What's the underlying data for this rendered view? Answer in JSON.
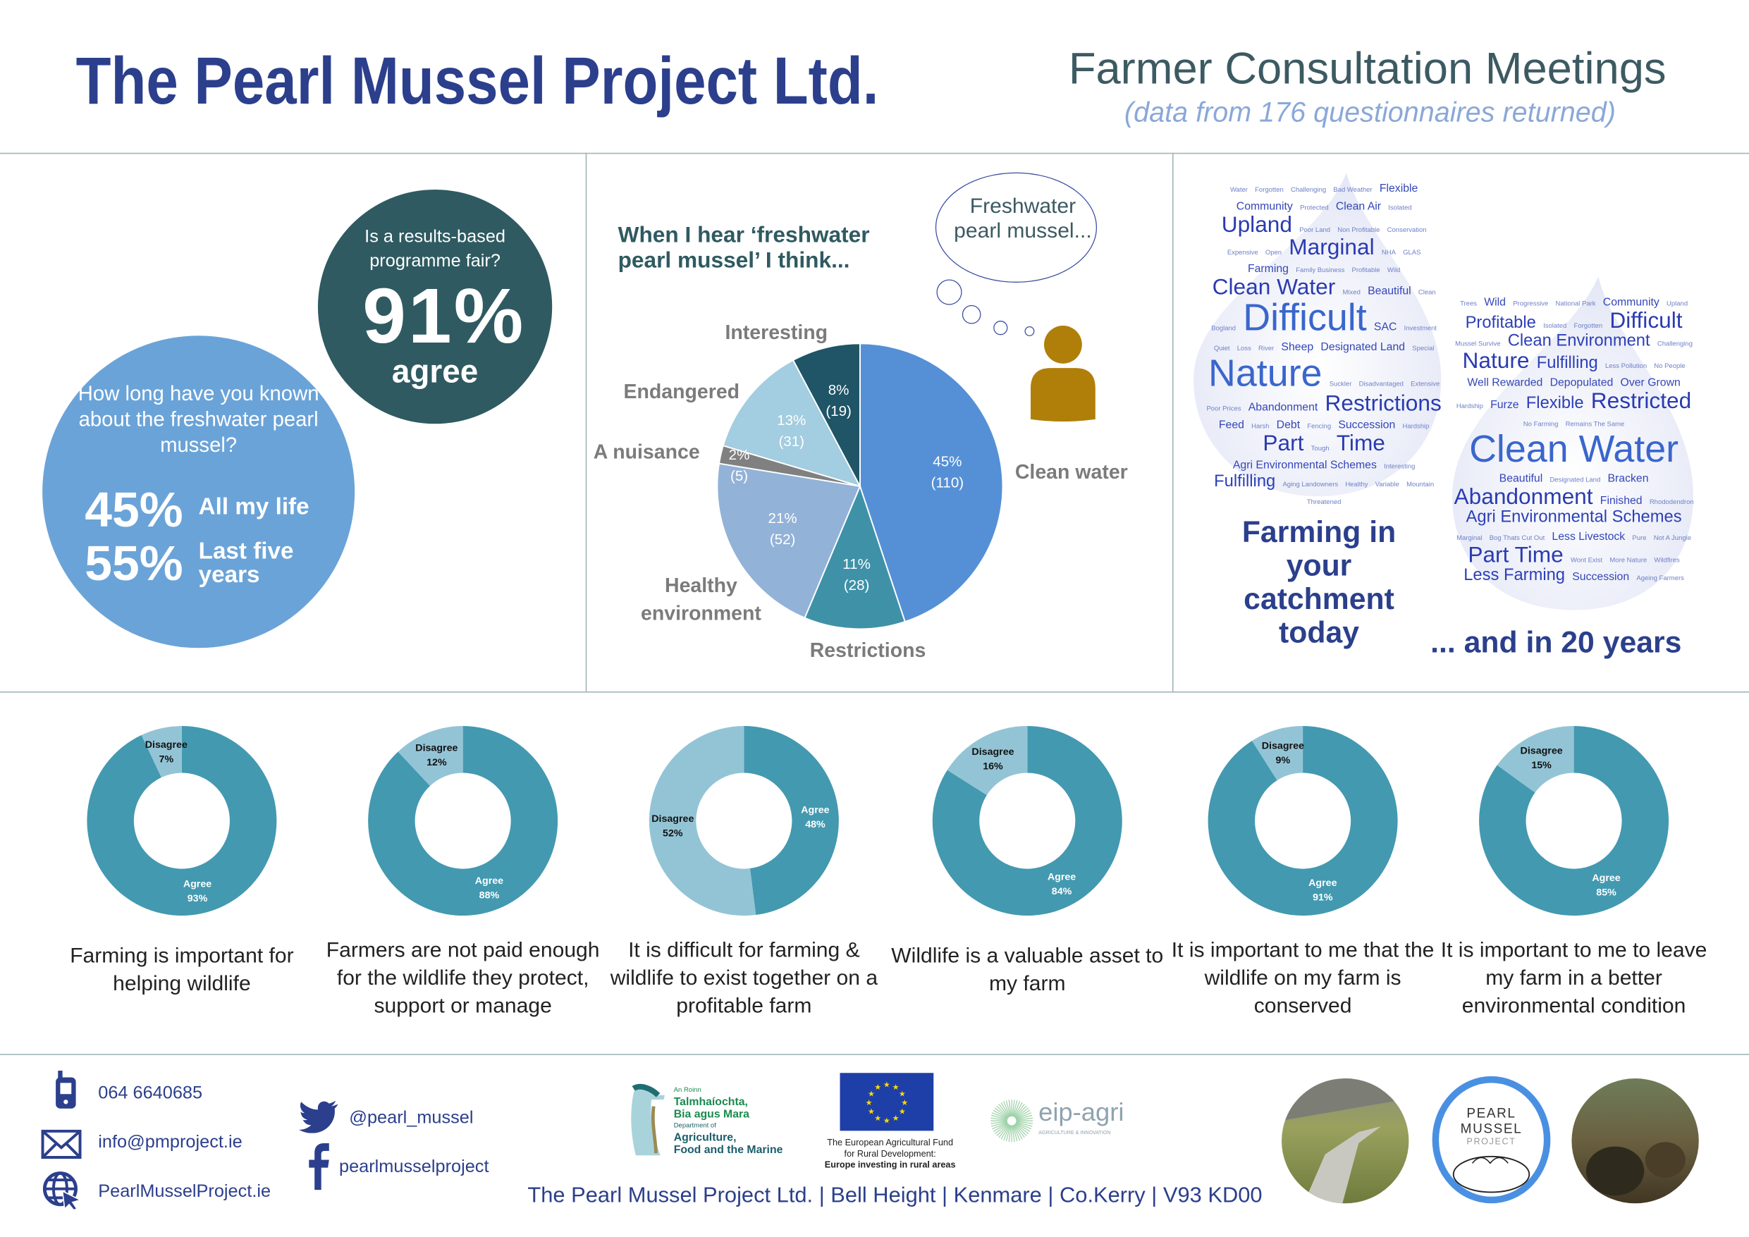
{
  "header": {
    "title": "The Pearl Mussel Project Ltd.",
    "subtitle": "Farmer Consultation Meetings",
    "note": "(data from 176 questionnaires returned)"
  },
  "fair": {
    "question": "Is a results-based programme fair?",
    "value": "91%",
    "label": "agree",
    "color": "#2f5a61"
  },
  "known": {
    "question": "How long have you known about the freshwater pearl mussel?",
    "rows": [
      {
        "value": "45%",
        "label": "All my life"
      },
      {
        "value": "55%",
        "label": "Last five years"
      }
    ],
    "color": "#6aa3d8"
  },
  "think": {
    "heading_line1": "When I hear ‘freshwater",
    "heading_line2": "pearl mussel’ I think...",
    "bubble": "Freshwater pearl mussel...",
    "person_icon_color": "#b07f0a"
  },
  "chart_data": [
    {
      "type": "pie",
      "categories": [
        "Clean water",
        "Restrictions",
        "Healthy environment",
        "A nuisance",
        "Endangered",
        "Interesting"
      ],
      "values": [
        110,
        28,
        52,
        5,
        31,
        19
      ],
      "percent_labels": [
        "45%",
        "11%",
        "21%",
        "2%",
        "13%",
        "8%"
      ],
      "count_labels": [
        "(110)",
        "(28)",
        "(52)",
        "(5)",
        "(31)",
        "(19)"
      ],
      "colors": [
        "#5590d6",
        "#3f91a8",
        "#93b2d8",
        "#808080",
        "#a3cde0",
        "#1f5566"
      ]
    },
    {
      "type": "donut",
      "colors": {
        "Agree": "#4399b0",
        "Disagree": "#93c4d6"
      },
      "items": [
        {
          "caption": "Farming is important for helping wildlife",
          "agree": 93,
          "disagree": 7
        },
        {
          "caption": "Farmers are not paid enough for the wildlife they protect, support or manage",
          "agree": 88,
          "disagree": 12
        },
        {
          "caption": "It is difficult for farming & wildlife to exist together on a profitable farm",
          "agree": 48,
          "disagree": 52
        },
        {
          "caption": "Wildlife is a valuable asset to my farm",
          "agree": 84,
          "disagree": 16
        },
        {
          "caption": "It is important to me that the wildlife on my farm is conserved",
          "agree": 91,
          "disagree": 9
        },
        {
          "caption": "It is important to me to leave my farm in a better environmental condition",
          "agree": 85,
          "disagree": 15
        }
      ],
      "labels": {
        "agree": "Agree",
        "disagree": "Disagree"
      }
    }
  ],
  "clouds": {
    "today": {
      "caption": "Farming in your catchment today",
      "words": [
        [
          "Water",
          1
        ],
        [
          "Forgotten",
          1
        ],
        [
          "Challenging",
          1
        ],
        [
          "Bad Weather",
          1
        ],
        [
          "Flexible",
          2
        ],
        [
          "Community",
          2
        ],
        [
          "Protected",
          1
        ],
        [
          "Clean Air",
          2
        ],
        [
          "Isolated",
          1
        ],
        [
          "Upland",
          4
        ],
        [
          "Poor Land",
          1
        ],
        [
          "Non Profitable",
          1
        ],
        [
          "Conservation",
          1
        ],
        [
          "Expensive",
          1
        ],
        [
          "Open",
          1
        ],
        [
          "Marginal",
          4
        ],
        [
          "NHA",
          1
        ],
        [
          "GLAS",
          1
        ],
        [
          "Farming",
          2
        ],
        [
          "Family Business",
          1
        ],
        [
          "Profitable",
          1
        ],
        [
          "Wild",
          1
        ],
        [
          "Clean Water",
          4
        ],
        [
          "Mixed",
          1
        ],
        [
          "Beautiful",
          2
        ],
        [
          "Clean",
          1
        ],
        [
          "Bogland",
          1
        ],
        [
          "Difficult",
          5
        ],
        [
          "SAC",
          2
        ],
        [
          "Investment",
          1
        ],
        [
          "Quiet",
          1
        ],
        [
          "Loss",
          1
        ],
        [
          "River",
          1
        ],
        [
          "Sheep",
          2
        ],
        [
          "Designated Land",
          2
        ],
        [
          "Special",
          1
        ],
        [
          "Nature",
          5
        ],
        [
          "Suckler",
          1
        ],
        [
          "Disadvantaged",
          1
        ],
        [
          "Extensive",
          1
        ],
        [
          "Poor Prices",
          1
        ],
        [
          "Abandonment",
          2
        ],
        [
          "Restrictions",
          4
        ],
        [
          "Feed",
          2
        ],
        [
          "Harsh",
          1
        ],
        [
          "Debt",
          2
        ],
        [
          "Fencing",
          1
        ],
        [
          "Succession",
          2
        ],
        [
          "Hardship",
          1
        ],
        [
          "Part",
          4
        ],
        [
          "Tough",
          1
        ],
        [
          "Time",
          4
        ],
        [
          "Agri Environmental Schemes",
          2
        ],
        [
          "Interesting",
          1
        ],
        [
          "Fulfilling",
          3
        ],
        [
          "Aging Landowners",
          1
        ],
        [
          "Healthy",
          1
        ],
        [
          "Variable",
          1
        ],
        [
          "Mountain",
          1
        ],
        [
          "Threatened",
          1
        ]
      ]
    },
    "future": {
      "caption": "... and in 20 years",
      "words": [
        [
          "Trees",
          1
        ],
        [
          "Wild",
          2
        ],
        [
          "Progressive",
          1
        ],
        [
          "National Park",
          1
        ],
        [
          "Community",
          2
        ],
        [
          "Upland",
          1
        ],
        [
          "Profitable",
          3
        ],
        [
          "Isolated",
          1
        ],
        [
          "Forgotten",
          1
        ],
        [
          "Difficult",
          4
        ],
        [
          "Mussel Survive",
          1
        ],
        [
          "Clean Environment",
          3
        ],
        [
          "Challenging",
          1
        ],
        [
          "Nature",
          4
        ],
        [
          "Fulfilling",
          3
        ],
        [
          "Less Pollution",
          1
        ],
        [
          "No People",
          1
        ],
        [
          "Well Rewarded",
          2
        ],
        [
          "Depopulated",
          2
        ],
        [
          "Over Grown",
          2
        ],
        [
          "Hardship",
          1
        ],
        [
          "Furze",
          2
        ],
        [
          "Flexible",
          3
        ],
        [
          "Restricted",
          4
        ],
        [
          "No Farming",
          1
        ],
        [
          "Remains The Same",
          1
        ],
        [
          "Clean Water",
          5
        ],
        [
          "Beautiful",
          2
        ],
        [
          "Designated Land",
          1
        ],
        [
          "Bracken",
          2
        ],
        [
          "Abandonment",
          4
        ],
        [
          "Finished",
          2
        ],
        [
          "Rhododendron",
          1
        ],
        [
          "Agri Environmental Schemes",
          3
        ],
        [
          "Marginal",
          1
        ],
        [
          "Bog Thats Cut Out",
          1
        ],
        [
          "Less Livestock",
          2
        ],
        [
          "Pure",
          1
        ],
        [
          "Not A Jungle",
          1
        ],
        [
          "Part Time",
          4
        ],
        [
          "Wont Exist",
          1
        ],
        [
          "More Nature",
          1
        ],
        [
          "Wildfires",
          1
        ],
        [
          "Less Farming",
          3
        ],
        [
          "Succession",
          2
        ],
        [
          "Ageing Farmers",
          1
        ]
      ]
    }
  },
  "footer": {
    "phone": "064 6640685",
    "email": "info@pmproject.ie",
    "website": "PearlMusselProject.ie",
    "twitter": "@pearl_mussel",
    "facebook": "pearlmusselproject",
    "dept_logo": {
      "line1": "An Roinn",
      "line2": "Talmhaíochta,",
      "line3": "Bia agus Mara",
      "line4": "Department of",
      "line5": "Agriculture,",
      "line6": "Food and the Marine"
    },
    "eu_text1": "The European Agricultural Fund",
    "eu_text2": "for Rural Development:",
    "eu_text3": "Europe investing in rural areas",
    "eip_logo": "eip-agri",
    "eip_sub": "AGRICULTURE & INNOVATION",
    "address": "The Pearl Mussel Project Ltd. | Bell Height | Kenmare | Co.Kerry | V93 KD00",
    "pmp_logo": {
      "line1": "PEARL",
      "line2": "MUSSEL",
      "line3": "PROJECT"
    }
  }
}
